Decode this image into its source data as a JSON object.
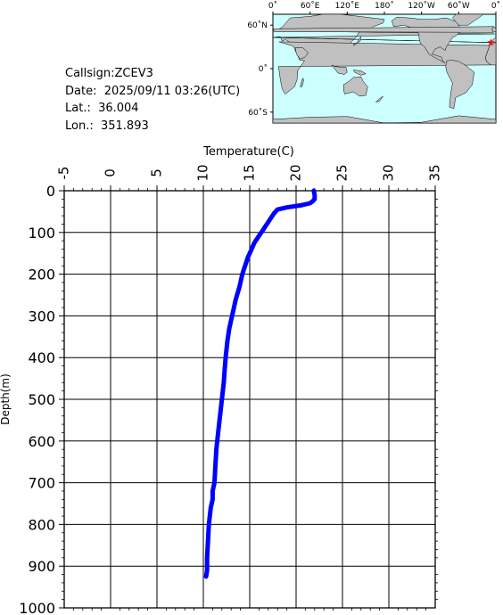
{
  "info": {
    "callsign": "Callsign:ZCEV3",
    "date": "Date:  2025/09/11 03:26(UTC)",
    "lat": "Lat.:  36.004",
    "lon": "Lon.:  351.893"
  },
  "map": {
    "lon_labels": [
      "0˚",
      "60˚E",
      "120˚E",
      "180˚",
      "120˚W",
      "60˚W",
      "0˚"
    ],
    "lat_labels": [
      "60˚N",
      "0˚",
      "60˚S"
    ],
    "ocean_color": "#ccffff",
    "land_color": "#c0c0c0",
    "marker_color": "#ff0000",
    "marker_lon": 351.893,
    "marker_lat": 36.004
  },
  "chart_data": {
    "type": "line",
    "xlabel": "Temperature(C)",
    "ylabel": "Depth(m)",
    "xlim": [
      -5,
      35
    ],
    "ylim": [
      1000,
      0
    ],
    "x_ticks": [
      "-5",
      "0",
      "5",
      "10",
      "15",
      "20",
      "25",
      "30",
      "35"
    ],
    "y_ticks": [
      "0",
      "100",
      "200",
      "300",
      "400",
      "500",
      "600",
      "700",
      "800",
      "900",
      "1000"
    ],
    "grid": true,
    "line_color": "#0000ff",
    "series": [
      {
        "x": [
          21.9,
          22.0,
          22.0,
          21.8,
          21.5,
          20.5,
          19.0,
          18.0,
          17.6,
          17.3,
          17.0,
          16.7,
          16.4,
          16.1,
          15.8,
          15.5,
          15.2,
          14.8,
          14.5,
          14.2,
          13.9,
          13.5,
          13.2,
          12.8,
          12.6,
          12.4,
          12.3,
          12.2,
          12.0,
          11.8,
          11.6,
          11.4,
          11.3,
          11.2,
          11.1,
          11.0,
          11.0,
          11.0,
          10.8,
          10.6,
          10.5,
          10.4,
          10.4,
          10.3
        ],
        "y": [
          0,
          10,
          20,
          25,
          30,
          35,
          40,
          45,
          55,
          65,
          75,
          85,
          95,
          105,
          115,
          125,
          140,
          160,
          180,
          200,
          230,
          260,
          290,
          330,
          360,
          400,
          430,
          460,
          500,
          540,
          580,
          620,
          660,
          700,
          710,
          720,
          730,
          740,
          760,
          800,
          840,
          880,
          910,
          925
        ]
      }
    ]
  }
}
